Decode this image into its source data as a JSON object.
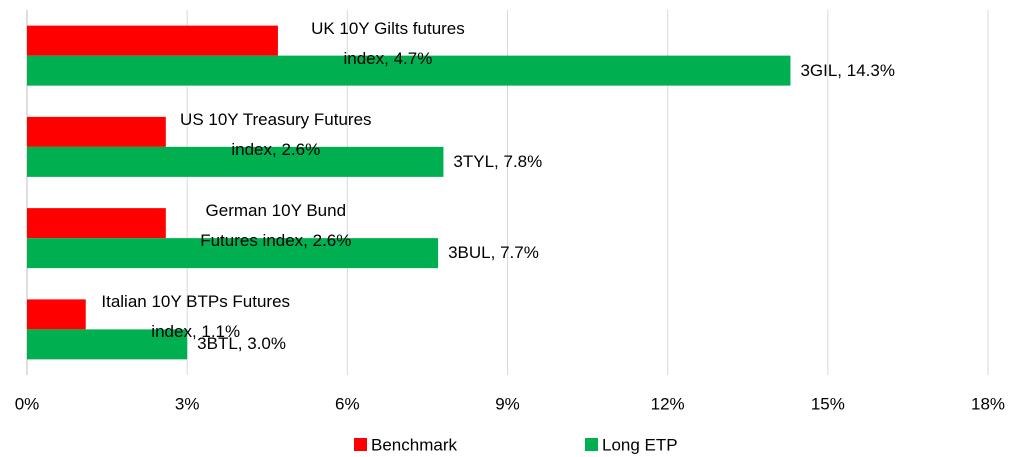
{
  "chart_data": {
    "type": "bar",
    "orientation": "horizontal",
    "categories": [
      null,
      null,
      null,
      null
    ],
    "series": [
      {
        "name": "Benchmark",
        "color": "#ff0000",
        "values": [
          4.7,
          2.6,
          2.6,
          1.1
        ],
        "value_labels": [
          "UK 10Y Gilts futures index, 4.7%",
          "US 10Y Treasury Futures index, 2.6%",
          "German 10Y Bund Futures index, 2.6%",
          "Italian 10Y BTPs Futures index, 1.1%"
        ]
      },
      {
        "name": "Long ETP",
        "color": "#00b050",
        "values": [
          14.3,
          7.8,
          7.7,
          3.0
        ],
        "value_labels": [
          "3GIL, 14.3%",
          "3TYL, 7.8%",
          "3BUL, 7.7%",
          "3BTL, 3.0%"
        ]
      }
    ],
    "xlim": [
      0,
      18
    ],
    "xticks": [
      {
        "value": 0,
        "label": "0%"
      },
      {
        "value": 3,
        "label": "3%"
      },
      {
        "value": 6,
        "label": "6%"
      },
      {
        "value": 9,
        "label": "9%"
      },
      {
        "value": 12,
        "label": "12%"
      },
      {
        "value": 15,
        "label": "15%"
      },
      {
        "value": 18,
        "label": "18%"
      }
    ],
    "grid": true,
    "legend": "bottom"
  }
}
